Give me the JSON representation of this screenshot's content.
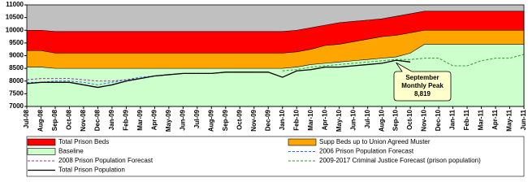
{
  "chart_data": {
    "type": "area",
    "categories": [
      "Jul-08",
      "Aug-08",
      "Sep-08",
      "Oct-08",
      "Nov-08",
      "Dec-08",
      "Jan-09",
      "Feb-09",
      "Mar-09",
      "Apr-09",
      "May-09",
      "Jun-09",
      "Jul-09",
      "Aug-09",
      "Sep-09",
      "Oct-09",
      "Nov-09",
      "Dec-09",
      "Jan-10",
      "Feb-10",
      "Mar-10",
      "Apr-10",
      "May-10",
      "Jun-10",
      "Jul-10",
      "Aug-10",
      "Sep-10",
      "Oct-10",
      "Nov-10",
      "Dec-10",
      "Jan-11",
      "Feb-11",
      "Mar-11",
      "Apr-11",
      "May-11",
      "Jun-11"
    ],
    "series": [
      {
        "name": "Total Prison Beds",
        "kind": "area",
        "color": "#ff0000",
        "values": [
          10000,
          10000,
          9950,
          9950,
          9950,
          9950,
          9950,
          9950,
          9950,
          9950,
          9950,
          9950,
          9950,
          9950,
          9950,
          9950,
          9950,
          9950,
          9950,
          10000,
          10100,
          10200,
          10300,
          10350,
          10400,
          10450,
          10550,
          10650,
          10750,
          10750,
          10750,
          10750,
          10750,
          10750,
          10750,
          10750
        ]
      },
      {
        "name": "Supp Beds up to Union Agreed Muster",
        "kind": "area",
        "color": "#ffa500",
        "values": [
          9200,
          9200,
          9100,
          9100,
          9100,
          9100,
          9100,
          9100,
          9100,
          9100,
          9100,
          9100,
          9100,
          9100,
          9100,
          9100,
          9100,
          9100,
          9100,
          9150,
          9250,
          9400,
          9450,
          9550,
          9650,
          9750,
          9800,
          9900,
          10000,
          10000,
          10000,
          10000,
          10000,
          10000,
          10000,
          10000
        ]
      },
      {
        "name": "Baseline",
        "kind": "area",
        "color": "#ccffcc",
        "values": [
          8550,
          8550,
          8500,
          8500,
          8500,
          8500,
          8500,
          8500,
          8500,
          8500,
          8500,
          8500,
          8500,
          8500,
          8500,
          8500,
          8500,
          8500,
          8500,
          8550,
          8650,
          8700,
          8750,
          8800,
          8850,
          8900,
          8950,
          9100,
          9450,
          9450,
          9450,
          9450,
          9450,
          9450,
          9450,
          9450
        ]
      },
      {
        "name": "2006 Prison Population Forecast",
        "kind": "line",
        "dashed": true,
        "color": "#3366ff",
        "values": [
          7950,
          7950,
          8000,
          8000,
          7950,
          7850,
          7950,
          8050,
          8150,
          8200,
          8250,
          8300,
          null,
          null,
          null,
          null,
          null,
          null,
          null,
          null,
          null,
          null,
          null,
          null,
          null,
          null,
          null,
          null,
          null,
          null,
          null,
          null,
          null,
          null,
          null,
          null
        ]
      },
      {
        "name": "2008 Prison Population Forecast",
        "kind": "line",
        "dashed": true,
        "color": "#993399",
        "values": [
          8050,
          8100,
          8100,
          8100,
          8050,
          8000,
          8000,
          8050,
          8100,
          8200,
          8250,
          8300,
          8300,
          8300,
          8350,
          8350,
          8350,
          8350,
          null,
          null,
          null,
          null,
          null,
          null,
          null,
          null,
          null,
          null,
          null,
          null,
          null,
          null,
          null,
          null,
          null,
          null
        ]
      },
      {
        "name": "2009-2017 Criminal Justice Forecast (prison population)",
        "kind": "line",
        "dashed": true,
        "color": "#339933",
        "values": [
          null,
          null,
          null,
          null,
          null,
          null,
          null,
          null,
          null,
          null,
          null,
          null,
          null,
          null,
          null,
          null,
          null,
          null,
          8400,
          8450,
          8550,
          8600,
          8650,
          8700,
          8750,
          8800,
          8850,
          8850,
          8900,
          8900,
          8600,
          8600,
          8800,
          8900,
          8900,
          9050
        ]
      },
      {
        "name": "Total Prison Population",
        "kind": "line",
        "color": "#000000",
        "values": [
          7900,
          7950,
          7950,
          7950,
          7850,
          7750,
          7850,
          8000,
          8100,
          8200,
          8250,
          8300,
          8300,
          8300,
          8350,
          8350,
          8350,
          8350,
          8150,
          8400,
          8450,
          8550,
          8550,
          8600,
          8650,
          8700,
          8819,
          8750,
          null,
          null,
          null,
          null,
          null,
          null,
          null,
          null
        ]
      }
    ],
    "annotation": {
      "lines": [
        "September",
        "Monthly Peak",
        "8,819"
      ],
      "series": 6,
      "index": 26
    },
    "ylim": [
      7000,
      11000
    ],
    "yticks": [
      7000,
      7500,
      8000,
      8500,
      9000,
      9500,
      10000,
      10500,
      11000
    ],
    "plot_background": "#c0c0c0",
    "legend": "bottom"
  }
}
